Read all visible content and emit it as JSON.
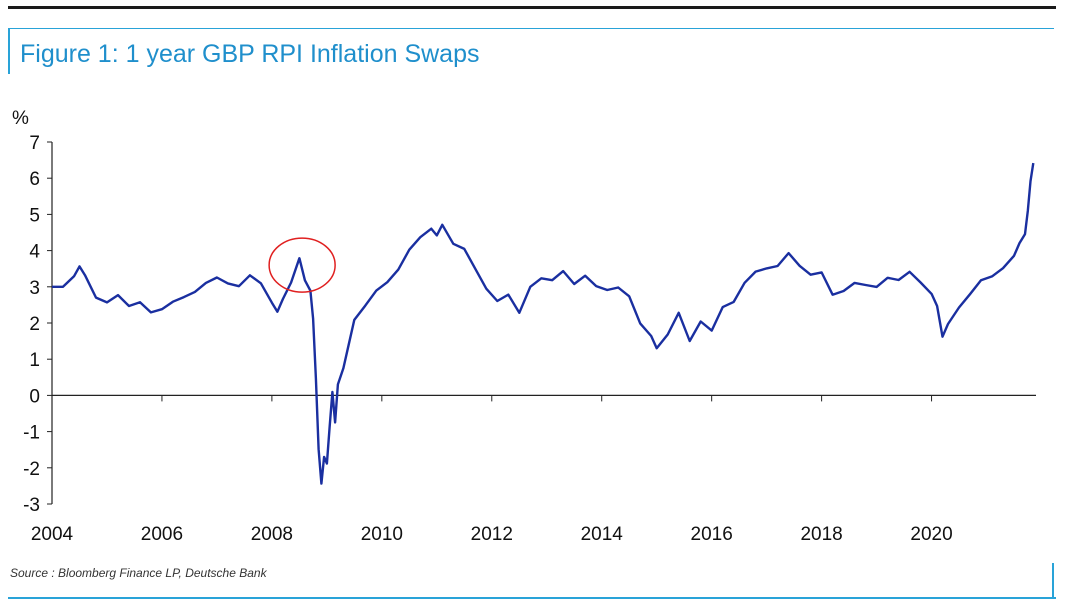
{
  "figure": {
    "title": "Figure 1: 1 year GBP RPI Inflation Swaps",
    "source": "Source : Bloomberg Finance LP, Deutsche Bank"
  },
  "colors": {
    "line": "#1a2fa0",
    "accent": "#29a3d8",
    "highlight": "#e02020"
  },
  "chart_data": {
    "type": "line",
    "title": "Figure 1: 1 year GBP RPI Inflation Swaps",
    "ylabel": "%",
    "xlabel": "",
    "xlim": [
      2004,
      2021.9
    ],
    "ylim": [
      -3,
      7
    ],
    "x_ticks": [
      "2004",
      "2006",
      "2008",
      "2010",
      "2012",
      "2014",
      "2016",
      "2018",
      "2020"
    ],
    "y_ticks": [
      "7",
      "6",
      "5",
      "4",
      "3",
      "2",
      "1",
      "0",
      "-1",
      "-2",
      "-3"
    ],
    "grid": false,
    "legend": "none",
    "annotation": {
      "type": "circle",
      "x": 2008.55,
      "y": 3.6
    },
    "series": [
      {
        "x": [
          2004.0,
          2004.2,
          2004.4,
          2004.5,
          2004.6,
          2004.8,
          2005.0,
          2005.2,
          2005.4,
          2005.6,
          2005.8,
          2006.0,
          2006.2,
          2006.4,
          2006.6,
          2006.8,
          2007.0,
          2007.2,
          2007.4,
          2007.6,
          2007.8,
          2008.0,
          2008.1,
          2008.2,
          2008.35,
          2008.5,
          2008.6,
          2008.7,
          2008.75,
          2008.8,
          2008.85,
          2008.9,
          2008.95,
          2009.0,
          2009.05,
          2009.1,
          2009.15,
          2009.2,
          2009.3,
          2009.4,
          2009.5,
          2009.7,
          2009.9,
          2010.1,
          2010.3,
          2010.5,
          2010.7,
          2010.9,
          2011.0,
          2011.1,
          2011.3,
          2011.5,
          2011.7,
          2011.9,
          2012.1,
          2012.3,
          2012.5,
          2012.7,
          2012.9,
          2013.1,
          2013.3,
          2013.5,
          2013.7,
          2013.9,
          2014.1,
          2014.3,
          2014.5,
          2014.7,
          2014.9,
          2015.0,
          2015.2,
          2015.4,
          2015.6,
          2015.8,
          2016.0,
          2016.2,
          2016.4,
          2016.6,
          2016.8,
          2017.0,
          2017.2,
          2017.4,
          2017.6,
          2017.8,
          2018.0,
          2018.2,
          2018.4,
          2018.6,
          2018.8,
          2019.0,
          2019.2,
          2019.4,
          2019.6,
          2019.8,
          2020.0,
          2020.1,
          2020.2,
          2020.3,
          2020.5,
          2020.7,
          2020.9,
          2021.1,
          2021.3,
          2021.5,
          2021.6,
          2021.7,
          2021.75,
          2021.8,
          2021.85
        ],
        "y": [
          3.0,
          2.95,
          3.2,
          3.45,
          3.2,
          2.6,
          2.5,
          2.75,
          2.5,
          2.65,
          2.4,
          2.5,
          2.7,
          2.8,
          2.9,
          3.1,
          3.2,
          3.0,
          2.9,
          3.2,
          3.0,
          2.5,
          2.3,
          2.7,
          3.2,
          3.9,
          3.3,
          3.0,
          2.2,
          0.5,
          -1.5,
          -2.5,
          -1.8,
          -2.0,
          -1.0,
          0.0,
          -0.8,
          0.3,
          0.8,
          1.5,
          2.2,
          2.6,
          3.0,
          3.2,
          3.5,
          4.0,
          4.3,
          4.5,
          4.3,
          4.6,
          4.1,
          4.0,
          3.5,
          3.0,
          2.7,
          2.9,
          2.4,
          3.1,
          3.3,
          3.2,
          3.4,
          3.0,
          3.2,
          2.9,
          2.8,
          2.9,
          2.7,
          2.0,
          1.7,
          1.4,
          1.8,
          2.4,
          1.6,
          2.1,
          1.8,
          2.4,
          2.5,
          3.0,
          3.3,
          3.4,
          3.5,
          3.9,
          3.6,
          3.4,
          3.5,
          2.9,
          3.0,
          3.2,
          3.1,
          3.0,
          3.2,
          3.1,
          3.3,
          3.0,
          2.7,
          2.4,
          1.6,
          2.0,
          2.5,
          2.9,
          3.3,
          3.4,
          3.6,
          3.9,
          4.2,
          4.4,
          5.0,
          5.8,
          6.3
        ]
      }
    ]
  }
}
